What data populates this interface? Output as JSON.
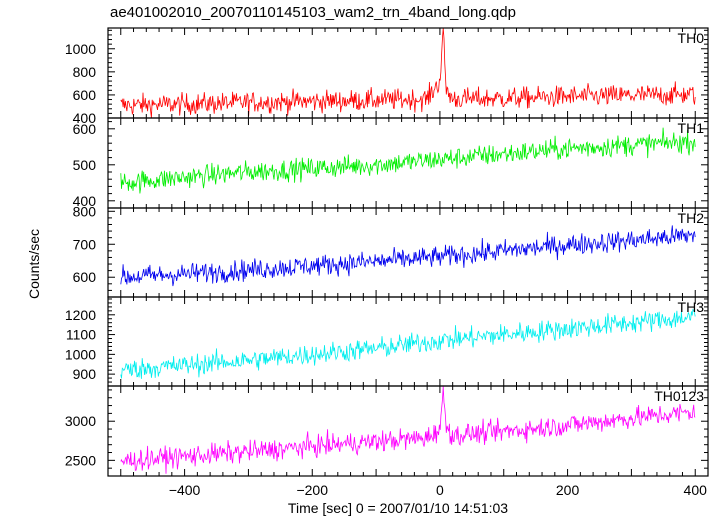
{
  "chart_data": {
    "type": "line",
    "title": "ae401002010_20070110145103_wam2_trn_4band_long.qdp",
    "xlabel": "Time [sec] 0 = 2007/01/10 14:51:03",
    "ylabel": "Counts/sec",
    "xlim": [
      -520,
      420
    ],
    "xticks": [
      -400,
      -200,
      0,
      200,
      400
    ],
    "grid": false,
    "legend": "none",
    "panels": [
      {
        "name": "TH0",
        "color": "#ff0000",
        "ylim": [
          400,
          1180
        ],
        "yticks": [
          400,
          600,
          800,
          1000
        ],
        "x": [
          -500,
          -400,
          -300,
          -200,
          -100,
          -20,
          0,
          5,
          10,
          20,
          100,
          200,
          300,
          400
        ],
        "y": [
          510,
          520,
          535,
          545,
          555,
          565,
          720,
          1150,
          640,
          565,
          570,
          585,
          595,
          605
        ]
      },
      {
        "name": "TH1",
        "color": "#00ee00",
        "ylim": [
          380,
          630
        ],
        "yticks": [
          400,
          500,
          600
        ],
        "x": [
          -500,
          -400,
          -300,
          -200,
          -100,
          0,
          100,
          200,
          300,
          400
        ],
        "y": [
          450,
          465,
          480,
          490,
          500,
          515,
          530,
          545,
          555,
          565
        ]
      },
      {
        "name": "TH2",
        "color": "#0000ee",
        "ylim": [
          540,
          810
        ],
        "yticks": [
          600,
          700,
          800
        ],
        "x": [
          -500,
          -400,
          -300,
          -200,
          -100,
          0,
          100,
          200,
          300,
          400
        ],
        "y": [
          600,
          610,
          622,
          635,
          648,
          662,
          680,
          698,
          712,
          728
        ]
      },
      {
        "name": "TH3",
        "color": "#00eeee",
        "ylim": [
          840,
          1290
        ],
        "yticks": [
          900,
          1000,
          1100,
          1200
        ],
        "x": [
          -500,
          -400,
          -300,
          -200,
          -100,
          0,
          100,
          200,
          300,
          400
        ],
        "y": [
          920,
          945,
          970,
          1000,
          1030,
          1070,
          1100,
          1130,
          1160,
          1190
        ]
      },
      {
        "name": "TH0123",
        "color": "#ff00ff",
        "ylim": [
          2300,
          3450
        ],
        "yticks": [
          2500,
          3000
        ],
        "x": [
          -500,
          -400,
          -300,
          -200,
          -100,
          -20,
          0,
          5,
          10,
          20,
          100,
          200,
          300,
          400
        ],
        "y": [
          2490,
          2550,
          2610,
          2680,
          2740,
          2790,
          2900,
          3350,
          2950,
          2820,
          2870,
          2950,
          3040,
          3120
        ]
      }
    ]
  }
}
